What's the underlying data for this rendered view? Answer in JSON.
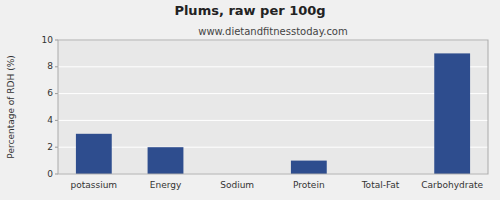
{
  "chart_data": {
    "type": "bar",
    "title": "Plums, raw per 100g",
    "subtitle": "www.dietandfitnesstoday.com",
    "ylabel": "Percentage of RDH (%)",
    "categories": [
      "potassium",
      "Energy",
      "Sodium",
      "Protein",
      "Total-Fat",
      "Carbohydrate"
    ],
    "values": [
      3,
      2,
      0,
      1,
      0,
      9
    ],
    "color": "#2e4d8e",
    "ylim": [
      0,
      10
    ],
    "yticks": [
      0,
      2,
      4,
      6,
      8,
      10
    ],
    "grid": true
  }
}
